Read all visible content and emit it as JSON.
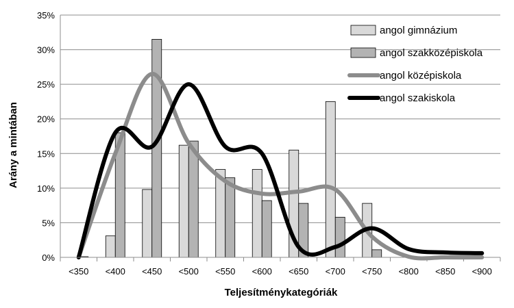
{
  "chart_data": {
    "type": "bar",
    "categories": [
      "<350",
      "<400",
      "<450",
      "<500",
      "<550",
      "<600",
      "<650",
      "<700",
      "<750",
      "<800",
      "<850",
      "<900"
    ],
    "xlabel": "Teljesítménykategóriák",
    "ylabel": "Arány a mintában",
    "ylim": [
      0,
      0.35
    ],
    "yticks": [
      0,
      0.05,
      0.1,
      0.15,
      0.2,
      0.25,
      0.3,
      0.35
    ],
    "ytick_labels": [
      "0%",
      "5%",
      "10%",
      "15%",
      "20%",
      "25%",
      "30%",
      "35%"
    ],
    "grid": "horizontal",
    "legend_position": "top-right",
    "series": [
      {
        "name": "angol gimnázium",
        "kind": "bar",
        "color": "#d9d9d9",
        "values": [
          0,
          0.031,
          0.098,
          0.162,
          0.127,
          0.127,
          0.155,
          0.225,
          0.078,
          0,
          0,
          0
        ]
      },
      {
        "name": "angol szakközépiskola",
        "kind": "bar",
        "color": "#b3b3b3",
        "values": [
          0.001,
          0.18,
          0.315,
          0.168,
          0.115,
          0.082,
          0.078,
          0.058,
          0.011,
          0,
          0,
          0
        ]
      },
      {
        "name": "angol középiskola",
        "kind": "line",
        "color": "#8c8c8c",
        "values": [
          0,
          0.15,
          0.265,
          0.165,
          0.11,
          0.092,
          0.095,
          0.098,
          0.03,
          0.001,
          0,
          0
        ]
      },
      {
        "name": "angol szakiskola",
        "kind": "line",
        "color": "#000000",
        "values": [
          0,
          0.18,
          0.16,
          0.25,
          0.16,
          0.15,
          0.015,
          0.015,
          0.042,
          0.012,
          0.007,
          0.006
        ]
      }
    ]
  }
}
